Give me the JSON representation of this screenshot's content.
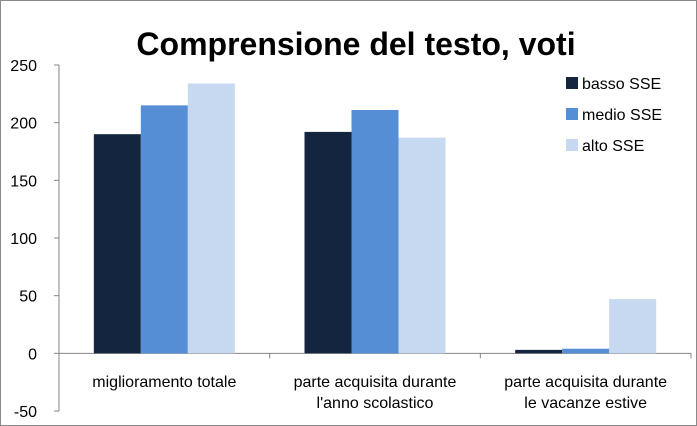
{
  "chart_data": {
    "type": "bar",
    "title": "Comprensione del testo, voti",
    "xlabel": "",
    "ylabel": "",
    "categories": [
      [
        "miglioramento totale"
      ],
      [
        "parte acquisita durante",
        "l'anno scolastico"
      ],
      [
        "parte acquisita durante",
        "le vacanze estive"
      ]
    ],
    "series": [
      {
        "name": "basso SSE",
        "color": "#13253f",
        "values": [
          190,
          192,
          3
        ]
      },
      {
        "name": "medio SSE",
        "color": "#558ed5",
        "values": [
          215,
          211,
          4
        ]
      },
      {
        "name": "alto SSE",
        "color": "#c6d9f1",
        "values": [
          234,
          187,
          47
        ]
      }
    ],
    "ylim": [
      -50,
      250
    ],
    "yticks": [
      250,
      200,
      150,
      100,
      50,
      0,
      -50
    ],
    "grid": false,
    "legend_position": "top-right"
  }
}
